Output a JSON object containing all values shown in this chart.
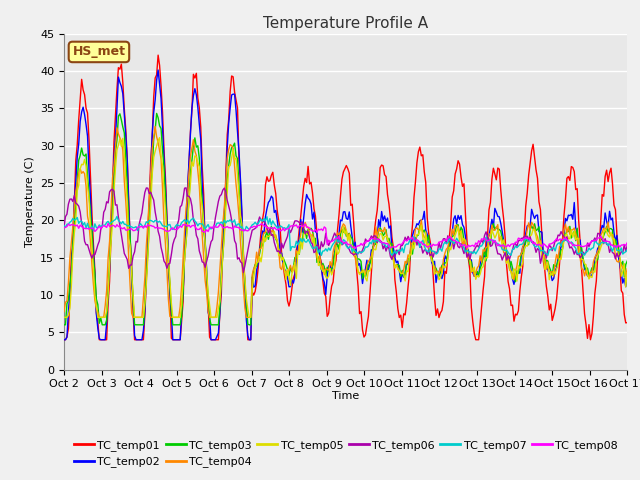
{
  "title": "Temperature Profile A",
  "xlabel": "Time",
  "ylabel": "Temperature (C)",
  "annotation_text": "HS_met",
  "annotation_bg": "#FFFF99",
  "annotation_border": "#8B4513",
  "ylim": [
    0,
    45
  ],
  "xtick_labels": [
    "Oct 2",
    "Oct 3",
    "Oct 4",
    "Oct 5",
    "Oct 6",
    "Oct 7",
    "Oct 8",
    "Oct 9",
    "Oct 10",
    "Oct 11",
    "Oct 12",
    "Oct 13",
    "Oct 14",
    "Oct 15",
    "Oct 16",
    "Oct 17"
  ],
  "series_colors": {
    "TC_temp01": "#FF0000",
    "TC_temp02": "#0000FF",
    "TC_temp03": "#00CC00",
    "TC_temp04": "#FF8800",
    "TC_temp05": "#DDDD00",
    "TC_temp06": "#AA00AA",
    "TC_temp07": "#00CCCC",
    "TC_temp08": "#FF00FF"
  },
  "fig_bg": "#F0F0F0",
  "plot_bg": "#E8E8E8",
  "grid_color": "#FFFFFF",
  "title_fontsize": 11,
  "axis_fontsize": 8,
  "legend_fontsize": 8
}
